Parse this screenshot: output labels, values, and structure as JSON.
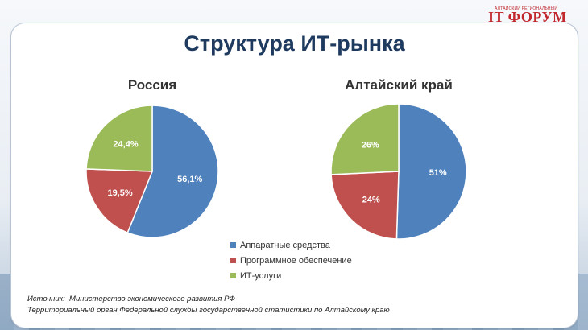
{
  "logo": {
    "small_text": "АЛТАЙСКИЙ РЕГИОНАЛЬНЫЙ",
    "brand_text": "IT ФОРУМ"
  },
  "title": "Структура ИТ-рынка",
  "colors": {
    "hardware": "#4f81bd",
    "software": "#c0504d",
    "services": "#9bbb59"
  },
  "chart_data": [
    {
      "type": "pie",
      "title": "Россия",
      "categories": [
        "Аппаратные средства",
        "Программное обеспечение",
        "ИТ-услуги"
      ],
      "values": [
        56.1,
        19.5,
        24.4
      ],
      "labels": [
        "56,1%",
        "19,5%",
        "24,4%"
      ]
    },
    {
      "type": "pie",
      "title": "Алтайский край",
      "categories": [
        "Аппаратные средства",
        "Программное обеспечение",
        "ИТ-услуги"
      ],
      "values": [
        51,
        24,
        26
      ],
      "labels": [
        "51%",
        "24%",
        "26%"
      ]
    }
  ],
  "legend": {
    "items": [
      "Аппаратные средства",
      "Программное обеспечение",
      "ИТ-услуги"
    ]
  },
  "source": {
    "line1_label": "Источник:",
    "line1_text": "Министерство экономического развития РФ",
    "line2": "Территориальный орган Федеральной службы государственной статистики по Алтайскому краю"
  }
}
